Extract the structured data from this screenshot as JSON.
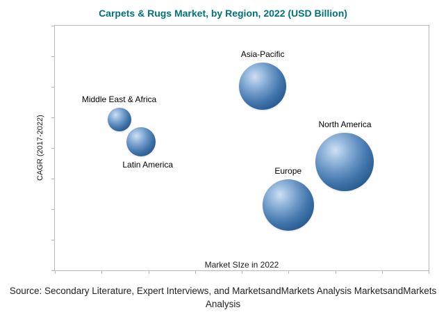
{
  "page": {
    "title": "Carpets & Rugs Market, by Region, 2022 (USD Billion)"
  },
  "source": {
    "lines": [
      "Source: Secondary Literature, Expert Interviews, and MarketsandMarkets Analysis MarketsandMarkets",
      "Analysis"
    ]
  },
  "colors": {
    "title": "#00737a",
    "plot_border": "#b8b8b8",
    "bubble_base": "#2d5f94",
    "bubble_highlight": "#cfe0f2",
    "text": "#1a1a1a"
  },
  "chart_data": {
    "type": "scatter",
    "title": "Carpets & Rugs Market, by Region, 2022 (USD Billion)",
    "xlabel": "Market SIze in 2022",
    "ylabel": "CAGR (2017-2022)",
    "grid": false,
    "legend": "none",
    "axis_tick_values_shown": false,
    "points": [
      {
        "id": "middle-east-africa",
        "label": "Middle East & Africa",
        "x_pct": 17.2,
        "y_pct": 61.6,
        "radius_px": 17,
        "label_pos": "above",
        "label_dx": 0
      },
      {
        "id": "latin-america",
        "label": "Latin America",
        "x_pct": 23.0,
        "y_pct": 52.5,
        "radius_px": 21,
        "label_pos": "below",
        "label_dx": 10
      },
      {
        "id": "asia-pacific",
        "label": "Asia-Pacific",
        "x_pct": 55.6,
        "y_pct": 75.4,
        "radius_px": 34,
        "label_pos": "above",
        "label_dx": 0
      },
      {
        "id": "europe",
        "label": "Europe",
        "x_pct": 62.4,
        "y_pct": 26.8,
        "radius_px": 37,
        "label_pos": "above",
        "label_dx": 0
      },
      {
        "id": "north-america",
        "label": "North America",
        "x_pct": 77.6,
        "y_pct": 44.4,
        "radius_px": 42,
        "label_pos": "above",
        "label_dx": 0
      }
    ],
    "layout": {
      "x_tick_count": 9,
      "y_tick_count": 9
    }
  }
}
